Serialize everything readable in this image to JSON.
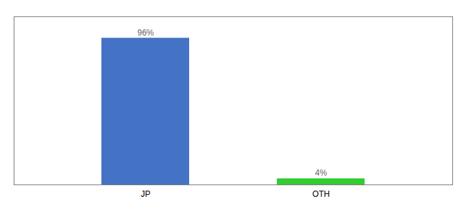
{
  "chart_data": {
    "type": "bar",
    "categories": [
      "JP",
      "OTH"
    ],
    "values": [
      96,
      4
    ],
    "value_labels": [
      "96%",
      "4%"
    ],
    "colors": [
      "#4472c4",
      "#33cc33"
    ],
    "ylim": [
      0,
      110
    ],
    "data_labels": true,
    "tick_labels": "x"
  }
}
